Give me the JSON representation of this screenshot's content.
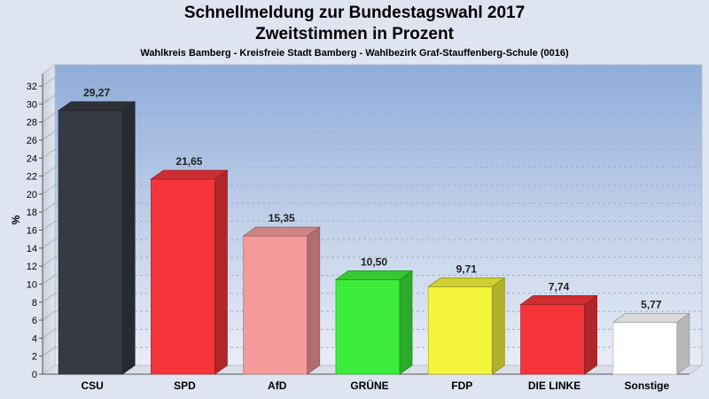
{
  "chart_data": {
    "type": "bar",
    "title": "Schnellmeldung zur Bundestagswahl 2017",
    "subtitle": "Zweitstimmen in Prozent",
    "caption": "Wahlkreis Bamberg - Kreisfreie Stadt Bamberg - Wahlbezirk Graf-Stauffenberg-Schule (0016)",
    "ylabel": "%",
    "xlabel": "",
    "ylim": [
      0,
      32
    ],
    "yticks": [
      0,
      2,
      4,
      6,
      8,
      10,
      12,
      14,
      16,
      18,
      20,
      22,
      24,
      26,
      28,
      30,
      32
    ],
    "grid": true,
    "categories": [
      "CSU",
      "SPD",
      "AfD",
      "GRÜNE",
      "FDP",
      "DIE LINKE",
      "Sonstige"
    ],
    "values": [
      29.27,
      21.65,
      15.35,
      10.5,
      9.71,
      7.74,
      5.77
    ],
    "value_labels": [
      "29,27",
      "21,65",
      "15,35",
      "10,50",
      "9,71",
      "7,74",
      "5,77"
    ],
    "colors": [
      "#363a42",
      "#f5353a",
      "#f59a9a",
      "#3dec3b",
      "#f5f53b",
      "#f5353a",
      "#ffffff"
    ]
  }
}
